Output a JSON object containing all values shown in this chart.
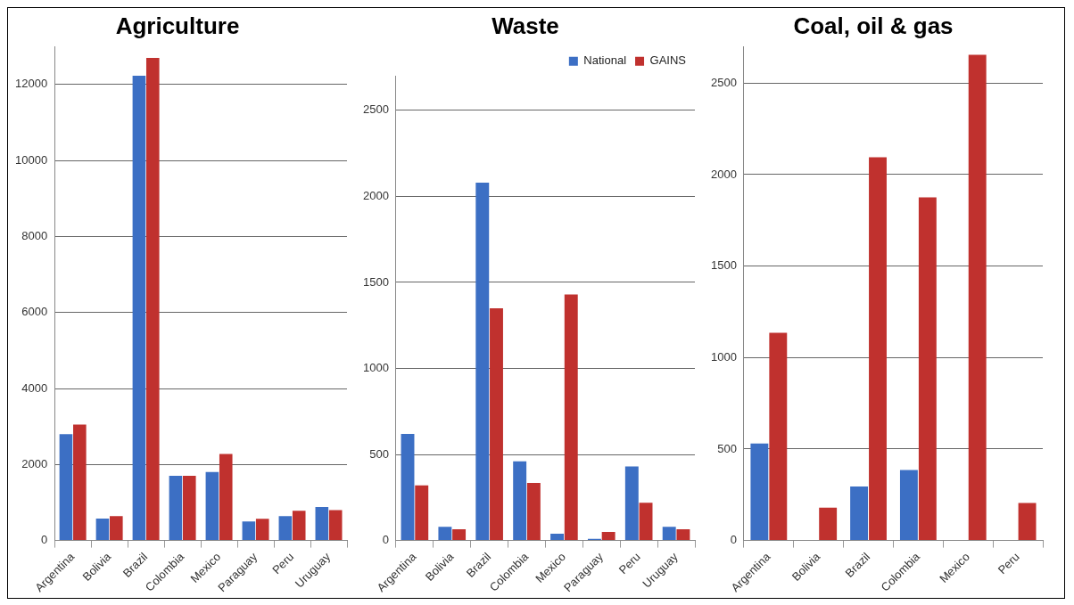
{
  "chart_data": [
    {
      "type": "bar",
      "title": "Agriculture",
      "categories": [
        "Argentina",
        "Bolivia",
        "Brazil",
        "Colombia",
        "Mexico",
        "Paraguay",
        "Peru",
        "Uruguay"
      ],
      "series": [
        {
          "color": "#3c6fc4",
          "values": [
            2800,
            580,
            12230,
            1700,
            1800,
            500,
            640,
            880
          ]
        },
        {
          "color": "#c0312e",
          "values": [
            3050,
            640,
            12700,
            1700,
            2280,
            570,
            780,
            800
          ]
        }
      ],
      "ylim": [
        0,
        13000
      ],
      "yticks": [
        0,
        2000,
        4000,
        6000,
        8000,
        10000,
        12000
      ],
      "grid": "y",
      "legend": false
    },
    {
      "type": "bar",
      "title": "Waste",
      "categories": [
        "Argentina",
        "Bolivia",
        "Brazil",
        "Colombia",
        "Mexico",
        "Paraguay",
        "Peru",
        "Uruguay"
      ],
      "series": [
        {
          "name": "National",
          "color": "#3c6fc4",
          "values": [
            620,
            80,
            2080,
            460,
            40,
            10,
            430,
            80
          ]
        },
        {
          "name": "GAINS",
          "color": "#c0312e",
          "values": [
            320,
            65,
            1350,
            335,
            1430,
            50,
            220,
            65
          ]
        }
      ],
      "ylim": [
        0,
        2700
      ],
      "yticks": [
        0,
        500,
        1000,
        1500,
        2000,
        2500
      ],
      "grid": "y",
      "legend": "top right"
    },
    {
      "type": "bar",
      "title": "Coal, oil & gas",
      "categories": [
        "Argentina",
        "Bolivia",
        "Brazil",
        "Colombia",
        "Mexico",
        "Peru"
      ],
      "series": [
        {
          "color": "#3c6fc4",
          "values": [
            530,
            null,
            295,
            385,
            null,
            null
          ]
        },
        {
          "color": "#c0312e",
          "values": [
            1135,
            180,
            2095,
            1875,
            2655,
            205
          ]
        }
      ],
      "ylim": [
        0,
        2700
      ],
      "yticks": [
        0,
        500,
        1000,
        1500,
        2000,
        2500
      ],
      "grid": "y",
      "legend": false
    }
  ]
}
